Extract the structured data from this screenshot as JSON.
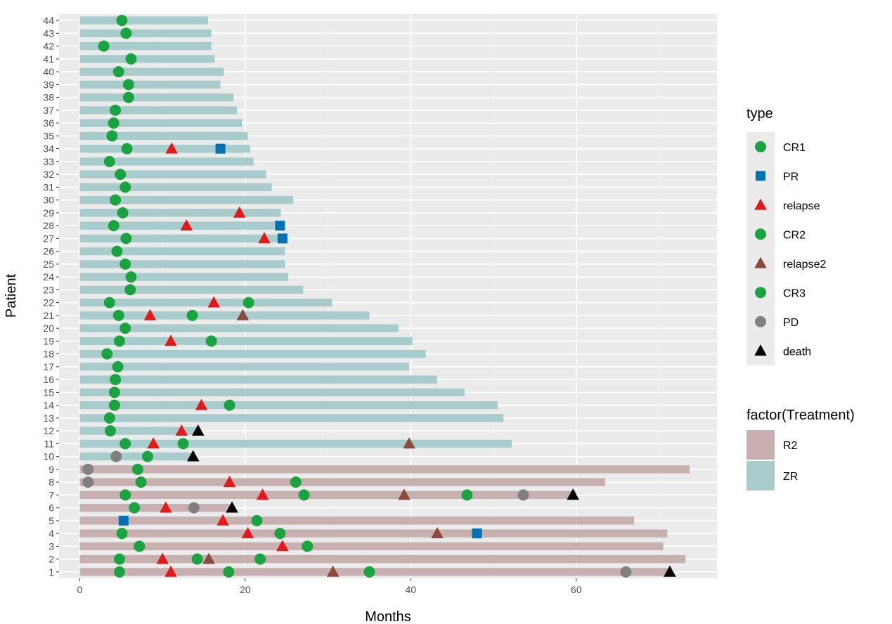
{
  "chart_data": {
    "type": "swimmer",
    "xlabel": "Months",
    "ylabel": "Patient",
    "xlim": [
      -2.5,
      77
    ],
    "ylim": [
      0.5,
      44.5
    ],
    "xticks": [
      0,
      20,
      40,
      60
    ],
    "yticks": [
      1,
      2,
      3,
      4,
      5,
      6,
      7,
      8,
      9,
      10,
      11,
      12,
      13,
      14,
      15,
      16,
      17,
      18,
      19,
      20,
      21,
      22,
      23,
      24,
      25,
      26,
      27,
      28,
      29,
      30,
      31,
      32,
      33,
      34,
      35,
      36,
      37,
      38,
      39,
      40,
      41,
      42,
      43,
      44
    ],
    "legend": {
      "type_title": "type",
      "type_entries": [
        {
          "label": "CR1",
          "shape": "circle",
          "color": "#1aa340"
        },
        {
          "label": "PR",
          "shape": "square",
          "color": "#0072b2"
        },
        {
          "label": "relapse",
          "shape": "triangle",
          "color": "#e31a1c"
        },
        {
          "label": "CR2",
          "shape": "circle",
          "color": "#1aa340"
        },
        {
          "label": "relapse2",
          "shape": "triangle",
          "color": "#8b4a3c"
        },
        {
          "label": "CR3",
          "shape": "circle",
          "color": "#1aa340"
        },
        {
          "label": "PD",
          "shape": "circle",
          "color": "#808080"
        },
        {
          "label": "death",
          "shape": "triangle",
          "color": "#000000"
        }
      ],
      "fill_title": "factor(Treatment)",
      "fill_entries": [
        {
          "label": "R2",
          "color": "#c8b0b0"
        },
        {
          "label": "ZR",
          "color": "#a8cccc"
        }
      ]
    },
    "bars": [
      {
        "patient": 1,
        "months": 71.5,
        "treatment": "R2"
      },
      {
        "patient": 2,
        "months": 73.2,
        "treatment": "R2"
      },
      {
        "patient": 3,
        "months": 70.5,
        "treatment": "R2"
      },
      {
        "patient": 4,
        "months": 71.0,
        "treatment": "R2"
      },
      {
        "patient": 5,
        "months": 67.0,
        "treatment": "R2"
      },
      {
        "patient": 6,
        "months": 18.5,
        "treatment": "R2"
      },
      {
        "patient": 7,
        "months": 60.0,
        "treatment": "R2"
      },
      {
        "patient": 8,
        "months": 63.5,
        "treatment": "R2"
      },
      {
        "patient": 9,
        "months": 73.7,
        "treatment": "R2"
      },
      {
        "patient": 10,
        "months": 13.5,
        "treatment": "ZR"
      },
      {
        "patient": 11,
        "months": 52.2,
        "treatment": "ZR"
      },
      {
        "patient": 12,
        "months": 14.5,
        "treatment": "ZR"
      },
      {
        "patient": 13,
        "months": 51.2,
        "treatment": "ZR"
      },
      {
        "patient": 14,
        "months": 50.5,
        "treatment": "ZR"
      },
      {
        "patient": 15,
        "months": 46.5,
        "treatment": "ZR"
      },
      {
        "patient": 16,
        "months": 43.2,
        "treatment": "ZR"
      },
      {
        "patient": 17,
        "months": 39.8,
        "treatment": "ZR"
      },
      {
        "patient": 18,
        "months": 41.8,
        "treatment": "ZR"
      },
      {
        "patient": 19,
        "months": 40.2,
        "treatment": "ZR"
      },
      {
        "patient": 20,
        "months": 38.5,
        "treatment": "ZR"
      },
      {
        "patient": 21,
        "months": 35.0,
        "treatment": "ZR"
      },
      {
        "patient": 22,
        "months": 30.5,
        "treatment": "ZR"
      },
      {
        "patient": 23,
        "months": 27.0,
        "treatment": "ZR"
      },
      {
        "patient": 24,
        "months": 25.2,
        "treatment": "ZR"
      },
      {
        "patient": 25,
        "months": 24.8,
        "treatment": "ZR"
      },
      {
        "patient": 26,
        "months": 24.8,
        "treatment": "ZR"
      },
      {
        "patient": 27,
        "months": 24.6,
        "treatment": "ZR"
      },
      {
        "patient": 28,
        "months": 24.5,
        "treatment": "ZR"
      },
      {
        "patient": 29,
        "months": 24.3,
        "treatment": "ZR"
      },
      {
        "patient": 30,
        "months": 25.8,
        "treatment": "ZR"
      },
      {
        "patient": 31,
        "months": 23.2,
        "treatment": "ZR"
      },
      {
        "patient": 32,
        "months": 22.5,
        "treatment": "ZR"
      },
      {
        "patient": 33,
        "months": 21.0,
        "treatment": "ZR"
      },
      {
        "patient": 34,
        "months": 20.6,
        "treatment": "ZR"
      },
      {
        "patient": 35,
        "months": 20.3,
        "treatment": "ZR"
      },
      {
        "patient": 36,
        "months": 19.6,
        "treatment": "ZR"
      },
      {
        "patient": 37,
        "months": 19.0,
        "treatment": "ZR"
      },
      {
        "patient": 38,
        "months": 18.6,
        "treatment": "ZR"
      },
      {
        "patient": 39,
        "months": 17.0,
        "treatment": "ZR"
      },
      {
        "patient": 40,
        "months": 17.4,
        "treatment": "ZR"
      },
      {
        "patient": 41,
        "months": 16.3,
        "treatment": "ZR"
      },
      {
        "patient": 42,
        "months": 15.9,
        "treatment": "ZR"
      },
      {
        "patient": 43,
        "months": 15.9,
        "treatment": "ZR"
      },
      {
        "patient": 44,
        "months": 15.5,
        "treatment": "ZR"
      }
    ],
    "events": [
      {
        "patient": 44,
        "month": 5.1,
        "type": "CR1"
      },
      {
        "patient": 43,
        "month": 5.6,
        "type": "CR1"
      },
      {
        "patient": 42,
        "month": 2.9,
        "type": "CR1"
      },
      {
        "patient": 41,
        "month": 6.2,
        "type": "CR1"
      },
      {
        "patient": 40,
        "month": 4.7,
        "type": "CR1"
      },
      {
        "patient": 39,
        "month": 5.9,
        "type": "CR1"
      },
      {
        "patient": 38,
        "month": 5.9,
        "type": "CR1"
      },
      {
        "patient": 37,
        "month": 4.3,
        "type": "CR1"
      },
      {
        "patient": 36,
        "month": 4.1,
        "type": "CR1"
      },
      {
        "patient": 35,
        "month": 3.9,
        "type": "CR1"
      },
      {
        "patient": 34,
        "month": 5.7,
        "type": "CR1"
      },
      {
        "patient": 34,
        "month": 11.1,
        "type": "relapse"
      },
      {
        "patient": 34,
        "month": 17.0,
        "type": "PR"
      },
      {
        "patient": 33,
        "month": 3.6,
        "type": "CR1"
      },
      {
        "patient": 32,
        "month": 4.9,
        "type": "CR1"
      },
      {
        "patient": 31,
        "month": 5.5,
        "type": "CR1"
      },
      {
        "patient": 30,
        "month": 4.3,
        "type": "CR1"
      },
      {
        "patient": 29,
        "month": 5.2,
        "type": "CR1"
      },
      {
        "patient": 29,
        "month": 19.3,
        "type": "relapse"
      },
      {
        "patient": 28,
        "month": 4.1,
        "type": "CR1"
      },
      {
        "patient": 28,
        "month": 12.9,
        "type": "relapse"
      },
      {
        "patient": 28,
        "month": 24.2,
        "type": "PR"
      },
      {
        "patient": 27,
        "month": 5.6,
        "type": "CR1"
      },
      {
        "patient": 27,
        "month": 22.3,
        "type": "relapse"
      },
      {
        "patient": 27,
        "month": 24.5,
        "type": "PR"
      },
      {
        "patient": 26,
        "month": 4.5,
        "type": "CR1"
      },
      {
        "patient": 25,
        "month": 5.5,
        "type": "CR1"
      },
      {
        "patient": 24,
        "month": 6.2,
        "type": "CR1"
      },
      {
        "patient": 23,
        "month": 6.1,
        "type": "CR1"
      },
      {
        "patient": 22,
        "month": 3.6,
        "type": "CR1"
      },
      {
        "patient": 22,
        "month": 16.2,
        "type": "relapse"
      },
      {
        "patient": 22,
        "month": 20.4,
        "type": "CR2"
      },
      {
        "patient": 21,
        "month": 4.7,
        "type": "CR1"
      },
      {
        "patient": 21,
        "month": 8.5,
        "type": "relapse"
      },
      {
        "patient": 21,
        "month": 13.6,
        "type": "CR2"
      },
      {
        "patient": 21,
        "month": 19.7,
        "type": "relapse2"
      },
      {
        "patient": 20,
        "month": 5.5,
        "type": "CR1"
      },
      {
        "patient": 19,
        "month": 4.8,
        "type": "CR1"
      },
      {
        "patient": 19,
        "month": 11.0,
        "type": "relapse"
      },
      {
        "patient": 19,
        "month": 15.9,
        "type": "CR2"
      },
      {
        "patient": 18,
        "month": 3.3,
        "type": "CR1"
      },
      {
        "patient": 17,
        "month": 4.6,
        "type": "CR1"
      },
      {
        "patient": 16,
        "month": 4.3,
        "type": "CR1"
      },
      {
        "patient": 15,
        "month": 4.2,
        "type": "CR1"
      },
      {
        "patient": 14,
        "month": 4.2,
        "type": "CR1"
      },
      {
        "patient": 14,
        "month": 14.7,
        "type": "relapse"
      },
      {
        "patient": 14,
        "month": 18.1,
        "type": "CR2"
      },
      {
        "patient": 13,
        "month": 3.6,
        "type": "CR1"
      },
      {
        "patient": 12,
        "month": 3.7,
        "type": "CR1"
      },
      {
        "patient": 12,
        "month": 12.3,
        "type": "relapse"
      },
      {
        "patient": 12,
        "month": 14.3,
        "type": "death"
      },
      {
        "patient": 11,
        "month": 5.5,
        "type": "CR1"
      },
      {
        "patient": 11,
        "month": 8.9,
        "type": "relapse"
      },
      {
        "patient": 11,
        "month": 12.5,
        "type": "CR2"
      },
      {
        "patient": 11,
        "month": 39.8,
        "type": "relapse2"
      },
      {
        "patient": 10,
        "month": 4.4,
        "type": "PD"
      },
      {
        "patient": 10,
        "month": 8.2,
        "type": "CR1"
      },
      {
        "patient": 10,
        "month": 13.7,
        "type": "death"
      },
      {
        "patient": 9,
        "month": 1.0,
        "type": "PD"
      },
      {
        "patient": 9,
        "month": 7.0,
        "type": "CR1"
      },
      {
        "patient": 8,
        "month": 1.0,
        "type": "PD"
      },
      {
        "patient": 8,
        "month": 7.4,
        "type": "CR1"
      },
      {
        "patient": 8,
        "month": 18.1,
        "type": "relapse"
      },
      {
        "patient": 8,
        "month": 26.1,
        "type": "CR2"
      },
      {
        "patient": 7,
        "month": 5.5,
        "type": "CR1"
      },
      {
        "patient": 7,
        "month": 22.1,
        "type": "relapse"
      },
      {
        "patient": 7,
        "month": 27.1,
        "type": "CR2"
      },
      {
        "patient": 7,
        "month": 39.2,
        "type": "relapse2"
      },
      {
        "patient": 7,
        "month": 46.8,
        "type": "CR3"
      },
      {
        "patient": 7,
        "month": 53.6,
        "type": "PD"
      },
      {
        "patient": 7,
        "month": 59.6,
        "type": "death"
      },
      {
        "patient": 6,
        "month": 6.6,
        "type": "CR1"
      },
      {
        "patient": 6,
        "month": 10.4,
        "type": "relapse"
      },
      {
        "patient": 6,
        "month": 13.8,
        "type": "PD"
      },
      {
        "patient": 6,
        "month": 18.4,
        "type": "death"
      },
      {
        "patient": 5,
        "month": 5.3,
        "type": "PR"
      },
      {
        "patient": 5,
        "month": 17.3,
        "type": "relapse"
      },
      {
        "patient": 5,
        "month": 21.4,
        "type": "CR2"
      },
      {
        "patient": 4,
        "month": 5.1,
        "type": "CR1"
      },
      {
        "patient": 4,
        "month": 20.3,
        "type": "relapse"
      },
      {
        "patient": 4,
        "month": 24.2,
        "type": "CR2"
      },
      {
        "patient": 4,
        "month": 43.2,
        "type": "relapse2"
      },
      {
        "patient": 4,
        "month": 48.0,
        "type": "PR"
      },
      {
        "patient": 3,
        "month": 7.2,
        "type": "CR1"
      },
      {
        "patient": 3,
        "month": 24.5,
        "type": "relapse"
      },
      {
        "patient": 3,
        "month": 27.5,
        "type": "CR2"
      },
      {
        "patient": 2,
        "month": 4.8,
        "type": "CR1"
      },
      {
        "patient": 2,
        "month": 10.0,
        "type": "relapse"
      },
      {
        "patient": 2,
        "month": 14.2,
        "type": "CR2"
      },
      {
        "patient": 2,
        "month": 15.6,
        "type": "relapse2"
      },
      {
        "patient": 2,
        "month": 21.8,
        "type": "CR3"
      },
      {
        "patient": 1,
        "month": 4.8,
        "type": "CR1"
      },
      {
        "patient": 1,
        "month": 11.0,
        "type": "relapse"
      },
      {
        "patient": 1,
        "month": 18.0,
        "type": "CR2"
      },
      {
        "patient": 1,
        "month": 30.6,
        "type": "relapse2"
      },
      {
        "patient": 1,
        "month": 35.0,
        "type": "CR3"
      },
      {
        "patient": 1,
        "month": 66.0,
        "type": "PD"
      },
      {
        "patient": 1,
        "month": 71.3,
        "type": "death"
      }
    ]
  }
}
